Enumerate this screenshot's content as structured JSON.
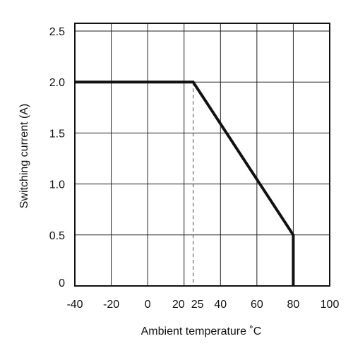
{
  "chart_data": {
    "type": "line",
    "title": "",
    "xlabel": "Ambient temperature ˚C",
    "ylabel": "Switching current (A)",
    "xlim": [
      -40,
      100
    ],
    "ylim": [
      0,
      2.5
    ],
    "grid": true,
    "x_ticks": [
      -40,
      -20,
      0,
      20,
      25,
      40,
      60,
      80,
      100
    ],
    "x_tick_labels": [
      "-40",
      "-20",
      "0",
      "20",
      "25",
      "40",
      "60",
      "80",
      "100"
    ],
    "x_gridlines": [
      -20,
      0,
      20,
      40,
      60,
      80
    ],
    "y_ticks": [
      0,
      0.5,
      1.0,
      1.5,
      2.0,
      2.5
    ],
    "y_tick_labels": [
      "0",
      "0.5",
      "1.0",
      "1.5",
      "2.0",
      "2.5"
    ],
    "reference_line": {
      "x": 25,
      "y_from": 0,
      "y_to": 2.0,
      "style": "dashed"
    },
    "series": [
      {
        "x": [
          -40,
          25,
          80,
          80
        ],
        "y": [
          2.0,
          2.0,
          0.5,
          0
        ],
        "color": "#111111"
      }
    ]
  }
}
